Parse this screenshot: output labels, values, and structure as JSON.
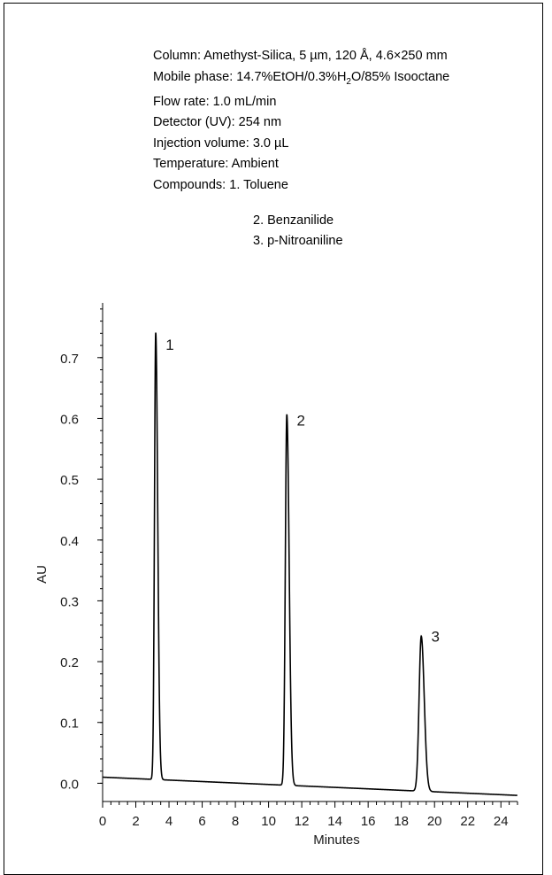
{
  "conditions": {
    "column": "Column: Amethyst-Silica, 5 µm, 120 Å, 4.6×250 mm",
    "mobile_phase_prefix": "Mobile phase: 14.7%EtOH/0.3%H",
    "mobile_phase_sub": "2",
    "mobile_phase_suffix": "O/85% Isooctane",
    "flow_rate": "Flow rate: 1.0 mL/min",
    "detector": "Detector (UV): 254 nm",
    "injection_volume": "Injection volume: 3.0 µL",
    "temperature": "Temperature: Ambient",
    "compounds_label": "Compounds:",
    "compounds": [
      "1. Toluene",
      "2. Benzanilide",
      "3. p-Nitroaniline"
    ]
  },
  "chart_data": {
    "type": "line",
    "xlabel": "Minutes",
    "ylabel": "AU",
    "xlim": [
      0,
      25
    ],
    "ylim": [
      -0.03,
      0.79
    ],
    "x_ticks": [
      0,
      2,
      4,
      6,
      8,
      10,
      12,
      14,
      16,
      18,
      20,
      22,
      24
    ],
    "x_tick_labels": [
      "0",
      "2",
      "4",
      "6",
      "8",
      "10",
      "12",
      "14",
      "16",
      "18",
      "20",
      "22",
      "24"
    ],
    "y_ticks": [
      0.0,
      0.1,
      0.2,
      0.3,
      0.4,
      0.5,
      0.6,
      0.7
    ],
    "y_tick_labels": [
      "0.0",
      "0.1",
      "0.2",
      "0.3",
      "0.4",
      "0.5",
      "0.6",
      "0.7"
    ],
    "baseline": 0.01,
    "peaks": [
      {
        "label": "1",
        "retention_time": 3.2,
        "height": 0.745
      },
      {
        "label": "2",
        "retention_time": 11.1,
        "height": 0.62
      },
      {
        "label": "3",
        "retention_time": 19.2,
        "height": 0.265
      }
    ],
    "color": "#000000"
  }
}
